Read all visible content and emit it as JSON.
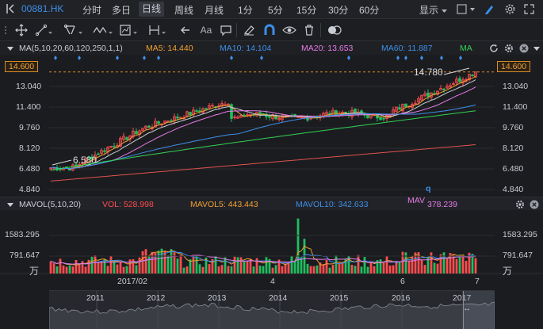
{
  "topbar": {
    "symbol": "00881.HK",
    "periods": [
      "分时",
      "多日",
      "日线",
      "周线",
      "月线",
      "1分",
      "5分",
      "15分",
      "30分",
      "60分"
    ],
    "active_period": "日线",
    "display_label": "显示"
  },
  "toolbar": {
    "text_tool": "Aa"
  },
  "ma_legend": {
    "title": "MA(5,10,20,60,120,250,1,1)",
    "ma5": "MA5: 14.440",
    "ma10": "MA10: 14.104",
    "ma20": "MA20: 13.653",
    "ma60": "MA60: 11.887",
    "ma": "MA"
  },
  "vol_legend": {
    "title": "MAVOL(5,10,20)",
    "vol": "VOL: 528.998",
    "mavol5": "MAVOL5: 443.443",
    "mavol10": "MAVOL10: 342.633",
    "mav": "MAV",
    "mav_value": "378.239"
  },
  "price_axis": {
    "current_price": "14.600",
    "ticks": [
      "13.040",
      "11.400",
      "9.760",
      "8.120",
      "6.480",
      "4.840"
    ]
  },
  "annotations": {
    "high_label": "14.780",
    "low_label": "6.580",
    "q_marker": "q"
  },
  "volume_axis": {
    "ticks": [
      "1583.295",
      "791.647"
    ],
    "unit": "万"
  },
  "x_axis": {
    "labels": [
      "2017/02",
      "4",
      "6",
      "7"
    ]
  },
  "navigator": {
    "years": [
      "2011",
      "2012",
      "2013",
      "2014",
      "2015",
      "2016",
      "2017"
    ]
  },
  "colors": {
    "up": "#ff4d4f",
    "down": "#1fbf5f",
    "ma5": "#f0a030",
    "ma10": "#3d8fe8",
    "ma20": "#e77be8",
    "ma60": "#3d8fe8",
    "ma120": "#31d352",
    "ma250": "#e0544c",
    "accent": "#3d8fe8"
  },
  "chart_data": {
    "type": "candlestick",
    "price_ylim": [
      4.84,
      14.78
    ],
    "current_price": 14.6,
    "high": 14.78,
    "low": 6.58,
    "volume_ticks": [
      1583.295,
      791.647
    ],
    "volume_unit": "万",
    "latest": {
      "MA5": 14.44,
      "MA10": 14.104,
      "MA20": 13.653,
      "MA60": 11.887,
      "VOL": 528.998,
      "MAVOL5": 443.443,
      "MAVOL10": 342.633,
      "MAVOL20": 378.239
    },
    "ma_periods": [
      5,
      10,
      20,
      60,
      120,
      250
    ]
  }
}
